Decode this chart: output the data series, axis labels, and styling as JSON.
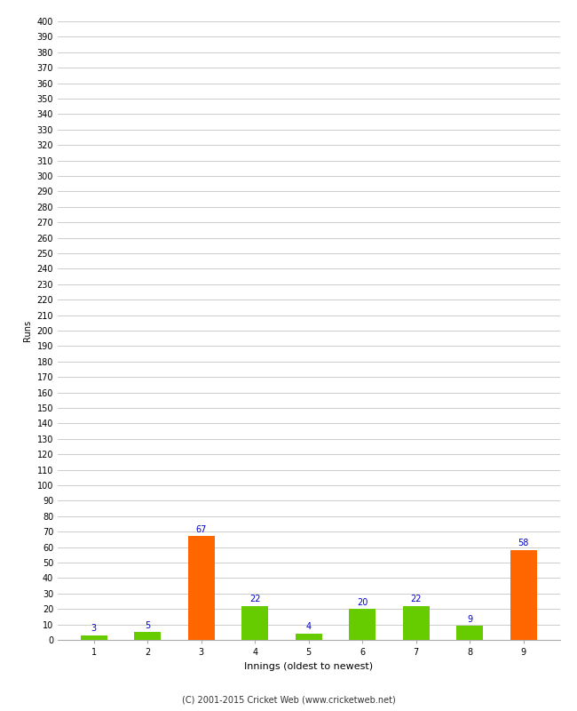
{
  "xlabel": "Innings (oldest to newest)",
  "ylabel": "Runs",
  "categories": [
    "1",
    "2",
    "3",
    "4",
    "5",
    "6",
    "7",
    "8",
    "9"
  ],
  "values": [
    3,
    5,
    67,
    22,
    4,
    20,
    22,
    9,
    58
  ],
  "bar_colors": [
    "#66cc00",
    "#66cc00",
    "#ff6600",
    "#66cc00",
    "#66cc00",
    "#66cc00",
    "#66cc00",
    "#66cc00",
    "#ff6600"
  ],
  "ylim": [
    0,
    400
  ],
  "ytick_step": 10,
  "label_color": "#0000cc",
  "grid_color": "#cccccc",
  "background_color": "#ffffff",
  "footer": "(C) 2001-2015 Cricket Web (www.cricketweb.net)",
  "bar_width": 0.5,
  "label_fontsize": 7,
  "tick_fontsize": 7,
  "xlabel_fontsize": 8,
  "ylabel_fontsize": 7,
  "footer_fontsize": 7
}
